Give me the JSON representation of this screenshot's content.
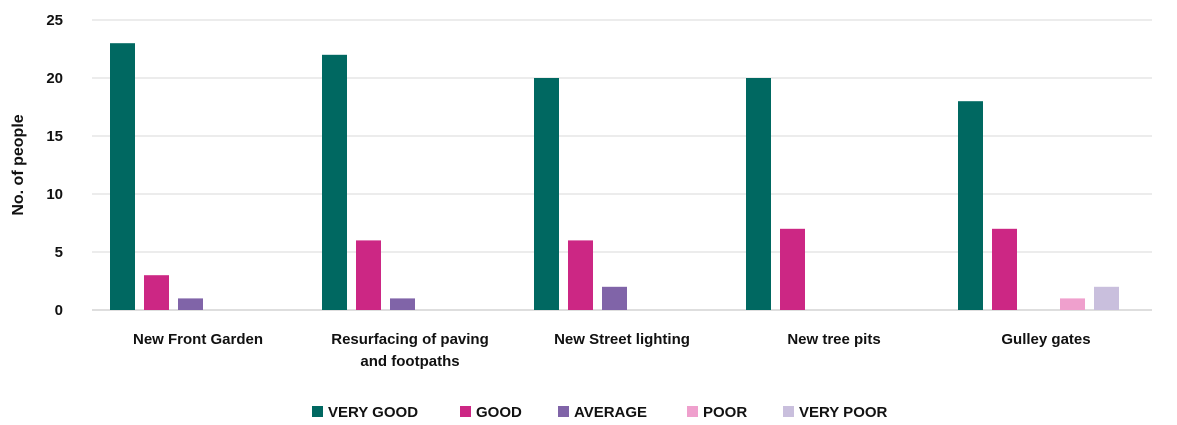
{
  "chart_data": {
    "type": "bar",
    "ylabel": "No. of people",
    "xlabel": "",
    "ylim": [
      0,
      25
    ],
    "yticks": [
      0,
      5,
      10,
      15,
      20,
      25
    ],
    "grid": true,
    "legend_position": "bottom",
    "categories": [
      [
        "New Front Garden"
      ],
      [
        "Resurfacing of paving",
        "and footpaths"
      ],
      [
        "New Street lighting"
      ],
      [
        "New tree pits"
      ],
      [
        "Gulley gates"
      ]
    ],
    "series": [
      {
        "name": "VERY GOOD",
        "color": "#006861",
        "values": [
          23,
          22,
          20,
          20,
          18
        ]
      },
      {
        "name": "GOOD",
        "color": "#cc2784",
        "values": [
          3,
          6,
          6,
          7,
          7
        ]
      },
      {
        "name": "AVERAGE",
        "color": "#8064a8",
        "values": [
          1,
          1,
          2,
          0,
          0
        ]
      },
      {
        "name": "POOR",
        "color": "#efa0cd",
        "values": [
          0,
          0,
          0,
          0,
          1
        ]
      },
      {
        "name": "VERY POOR",
        "color": "#c9bfdd",
        "values": [
          0,
          0,
          0,
          0,
          2
        ]
      }
    ]
  }
}
